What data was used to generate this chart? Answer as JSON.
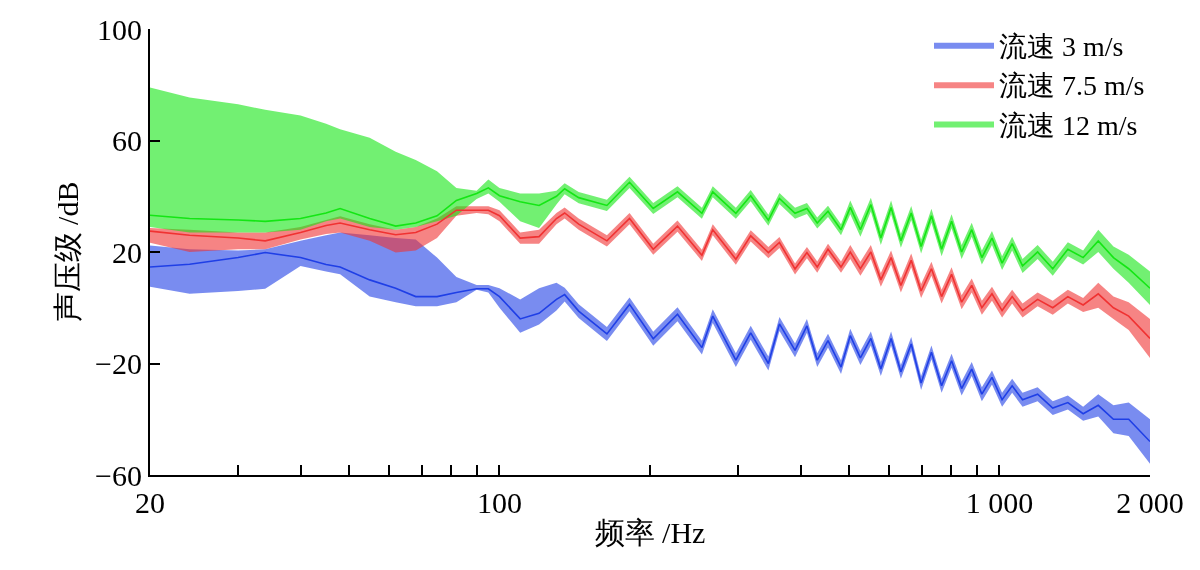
{
  "chart_data": {
    "type": "line",
    "xlabel": "频率 /Hz",
    "ylabel": "声压级 /dB",
    "log": "x",
    "legend": "top right",
    "xlim": [
      20,
      2000
    ],
    "ylim": [
      -60,
      100
    ],
    "xticks": [
      20,
      {
        "value": 30,
        "label": null
      },
      {
        "value": 40,
        "label": null
      },
      {
        "value": 50,
        "label": null
      },
      {
        "value": 60,
        "label": null
      },
      {
        "value": 70,
        "label": null
      },
      {
        "value": 80,
        "label": null
      },
      {
        "value": 90,
        "label": null
      },
      100,
      {
        "value": 200,
        "label": null
      },
      {
        "value": 300,
        "label": null
      },
      {
        "value": 400,
        "label": null
      },
      {
        "value": 500,
        "label": null
      },
      {
        "value": 600,
        "label": null
      },
      {
        "value": 700,
        "label": null
      },
      {
        "value": 800,
        "label": null
      },
      {
        "value": 900,
        "label": null
      },
      {
        "value": 1000,
        "label": "1 000"
      },
      {
        "value": 2000,
        "label": "2 000"
      }
    ],
    "yticks": [
      {
        "value": -60,
        "label": "−60"
      },
      {
        "value": -20,
        "label": "−20"
      },
      20,
      60,
      100
    ],
    "x": [
      20,
      24,
      30,
      34,
      40,
      45,
      48,
      55,
      62,
      68,
      75,
      82,
      90,
      95,
      100,
      110,
      120,
      130,
      135,
      144,
      164,
      182,
      203,
      227,
      254,
      267,
      297,
      318,
      345,
      363,
      390,
      412,
      432,
      454,
      482,
      503,
      527,
      553,
      579,
      607,
      635,
      666,
      697,
      731,
      766,
      802,
      840,
      880,
      922,
      966,
      1012,
      1060,
      1112,
      1192,
      1278,
      1370,
      1470,
      1576,
      1690,
      1813,
      2000
    ],
    "series": [
      {
        "name": "流速 3 m/s",
        "color": "#1f3fe6",
        "values": [
          14.6,
          15.6,
          18,
          19.8,
          18,
          15.5,
          14.6,
          10,
          7,
          4,
          4,
          5.5,
          6.8,
          6.8,
          4,
          -4,
          -2,
          3,
          4.7,
          -1.2,
          -9.4,
          1.2,
          -11.1,
          -2.3,
          -14.3,
          -3,
          -18.8,
          -9,
          -20,
          -5.8,
          -15.3,
          -6.5,
          -18.8,
          -11.8,
          -21.3,
          -10,
          -18,
          -11,
          -22,
          -11,
          -23,
          -13,
          -27,
          -16,
          -28,
          -19,
          -29,
          -22,
          -31,
          -25,
          -33,
          -28,
          -33,
          -31,
          -36,
          -34,
          -38,
          -35,
          -40,
          -40,
          -48
        ],
        "lower": [
          7.5,
          5,
          6,
          6.8,
          15,
          13,
          12,
          4,
          2,
          0.5,
          0.5,
          2,
          6.5,
          5.5,
          0,
          -9,
          -6,
          -1,
          2.2,
          -3.7,
          -11.9,
          -1.3,
          -13.6,
          -4.8,
          -16.8,
          -5.5,
          -21.3,
          -11.5,
          -22.5,
          -8.3,
          -17.8,
          -9,
          -21.3,
          -14.3,
          -23.8,
          -12.5,
          -20.5,
          -13.5,
          -24.5,
          -13.5,
          -25.5,
          -15.5,
          -29.5,
          -18.5,
          -30.5,
          -21.5,
          -31.5,
          -24.5,
          -33.5,
          -27.5,
          -35.5,
          -30.5,
          -35.5,
          -33.5,
          -38.5,
          -36.5,
          -40.5,
          -39,
          -45,
          -46,
          -56
        ],
        "upper": [
          22.3,
          21,
          20.5,
          21,
          24,
          26,
          27,
          26,
          25,
          24.5,
          18,
          11,
          8.2,
          8.2,
          7,
          3,
          7,
          9,
          7.2,
          1.3,
          -6.9,
          3.7,
          -8.6,
          0.2,
          -11.8,
          -0.5,
          -16.3,
          -6.5,
          -17.5,
          -3.3,
          -12.8,
          -4,
          -16.3,
          -9.3,
          -18.8,
          -7.5,
          -15.5,
          -8.5,
          -19.5,
          -8.5,
          -20.5,
          -10.5,
          -24.5,
          -13.5,
          -25.5,
          -16.5,
          -26.5,
          -19.5,
          -28.5,
          -22.5,
          -30.5,
          -25.5,
          -30.5,
          -28.5,
          -33.5,
          -31.5,
          -35.5,
          -31,
          -35,
          -34,
          -40
        ]
      },
      {
        "name": "流速 7.5 m/s",
        "color": "#f03232",
        "values": [
          27.5,
          26,
          25,
          24,
          27,
          29.5,
          30.4,
          28,
          26.2,
          27,
          30,
          35,
          35,
          35,
          33,
          25,
          25.5,
          32,
          34,
          30,
          24,
          32,
          21,
          29.3,
          18.8,
          28,
          17.4,
          25.8,
          19.8,
          23.4,
          13.9,
          19.8,
          14.6,
          21,
          14.6,
          20,
          14,
          20,
          10,
          18,
          8,
          17,
          6,
          14,
          4,
          12,
          2,
          8,
          0,
          5,
          -1,
          4,
          -1,
          3,
          0,
          4,
          1,
          5,
          0,
          -3,
          -11
        ],
        "lower": [
          23.3,
          20,
          21,
          21,
          24.5,
          26.5,
          27,
          24,
          19.8,
          20.5,
          25,
          33,
          34,
          33.5,
          31,
          23,
          23,
          30,
          32,
          28,
          22,
          30,
          19,
          27.3,
          16.8,
          26,
          15.4,
          23.8,
          17.8,
          21.4,
          11.9,
          17.8,
          12.6,
          19,
          12.6,
          17.5,
          11.5,
          17.5,
          7.5,
          15.5,
          5.5,
          14.5,
          3.5,
          11.5,
          1.5,
          9.5,
          -0.5,
          5.5,
          -2.5,
          2.5,
          -3.5,
          1.5,
          -3.5,
          0.5,
          -2.5,
          1.5,
          -1.5,
          0,
          -4,
          -8,
          -18
        ],
        "upper": [
          28.6,
          28,
          27,
          27,
          29,
          31.5,
          32.8,
          30,
          28,
          29,
          32,
          36.4,
          36.4,
          36.4,
          35,
          27,
          28,
          34,
          36,
          32,
          26,
          34,
          23,
          31.3,
          20.8,
          30,
          19.4,
          27.8,
          21.8,
          25.4,
          15.9,
          21.8,
          16.6,
          23,
          16.6,
          22.5,
          16.5,
          22.5,
          12.5,
          20.5,
          10.5,
          19.5,
          8.5,
          16.5,
          6.5,
          14.5,
          4.5,
          10.5,
          2.5,
          7.5,
          1.5,
          6.5,
          1.5,
          5.5,
          2.5,
          6.5,
          3.5,
          9,
          4,
          2,
          -4
        ]
      },
      {
        "name": "流速 12 m/s",
        "color": "#14e614",
        "values": [
          33.2,
          32,
          31.5,
          31,
          32,
          34,
          35.6,
          32,
          29.3,
          30.4,
          33,
          38.5,
          41,
          43,
          40.2,
          38,
          36.7,
          40,
          42.7,
          39.5,
          36.7,
          45,
          35.6,
          41.6,
          33.9,
          41.6,
          33.9,
          40.2,
          31.4,
          39.2,
          33.9,
          35.6,
          30.4,
          34.6,
          28,
          36,
          28,
          37,
          25,
          36,
          24,
          34,
          22,
          33,
          21,
          31,
          20,
          28,
          18,
          25,
          16,
          23,
          15,
          20,
          14,
          21,
          18,
          24,
          18,
          14,
          7
        ],
        "lower": [
          29,
          27,
          27,
          27,
          28,
          31,
          32,
          29,
          28,
          29,
          31,
          33,
          39,
          41,
          38,
          31,
          28.6,
          37,
          40.7,
          37.5,
          34.7,
          43,
          33.6,
          39.6,
          31.9,
          39.6,
          31.9,
          38.2,
          29.4,
          37.2,
          31.9,
          33.6,
          28.4,
          32.6,
          26,
          33.5,
          25.5,
          34.5,
          22.5,
          33.5,
          21.5,
          31.5,
          19.5,
          30.5,
          18.5,
          28.5,
          17.5,
          25.5,
          15.5,
          22.5,
          13.5,
          20.5,
          12.5,
          17.5,
          11.5,
          18.5,
          15.5,
          20,
          14,
          9,
          1
        ],
        "upper": [
          79,
          75.4,
          73,
          71,
          69,
          66,
          64,
          61,
          56,
          53,
          49,
          43,
          42,
          46,
          43,
          41,
          41,
          42,
          44.7,
          41.5,
          38.7,
          47,
          37.6,
          43.6,
          35.9,
          43.6,
          35.9,
          42.2,
          33.4,
          41.2,
          35.9,
          37.6,
          32.4,
          36.6,
          30,
          38.5,
          30.5,
          39.5,
          27.5,
          38.5,
          26.5,
          36.5,
          24.5,
          35.5,
          23.5,
          33.5,
          22.5,
          30.5,
          20.5,
          27.5,
          18.5,
          25.5,
          17.5,
          22.5,
          16.5,
          23.5,
          20.5,
          28,
          22,
          19,
          13
        ]
      }
    ]
  }
}
